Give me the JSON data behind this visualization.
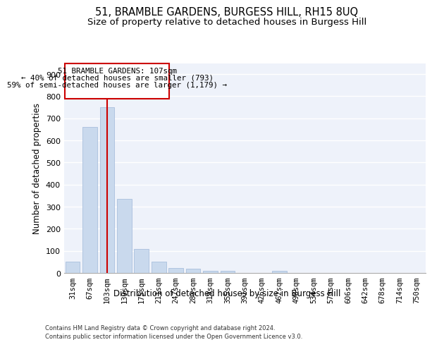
{
  "title": "51, BRAMBLE GARDENS, BURGESS HILL, RH15 8UQ",
  "subtitle": "Size of property relative to detached houses in Burgess Hill",
  "xlabel": "Distribution of detached houses by size in Burgess Hill",
  "ylabel": "Number of detached properties",
  "footnote1": "Contains HM Land Registry data © Crown copyright and database right 2024.",
  "footnote2": "Contains public sector information licensed under the Open Government Licence v3.0.",
  "bar_labels": [
    "31sqm",
    "67sqm",
    "103sqm",
    "139sqm",
    "175sqm",
    "211sqm",
    "247sqm",
    "283sqm",
    "319sqm",
    "355sqm",
    "391sqm",
    "426sqm",
    "462sqm",
    "498sqm",
    "534sqm",
    "570sqm",
    "606sqm",
    "642sqm",
    "678sqm",
    "714sqm",
    "750sqm"
  ],
  "bar_values": [
    52,
    660,
    750,
    335,
    107,
    50,
    22,
    18,
    11,
    8,
    0,
    0,
    8,
    0,
    0,
    0,
    0,
    0,
    0,
    0,
    0
  ],
  "bar_color": "#c9d9ed",
  "bar_edgecolor": "#a0b8d8",
  "property_label": "51 BRAMBLE GARDENS: 107sqm",
  "annotation_line1": "← 40% of detached houses are smaller (793)",
  "annotation_line2": "59% of semi-detached houses are larger (1,179) →",
  "vline_color": "#cc0000",
  "annotation_box_edgecolor": "#cc0000",
  "annotation_box_facecolor": "#ffffff",
  "ylim": [
    0,
    950
  ],
  "yticks": [
    0,
    100,
    200,
    300,
    400,
    500,
    600,
    700,
    800,
    900
  ],
  "background_color": "#eef2fa",
  "grid_color": "#ffffff",
  "title_fontsize": 10.5,
  "subtitle_fontsize": 9.5,
  "axis_label_fontsize": 8.5,
  "tick_fontsize": 7.5,
  "annot_fontsize": 7.8,
  "footnote_fontsize": 6.0
}
